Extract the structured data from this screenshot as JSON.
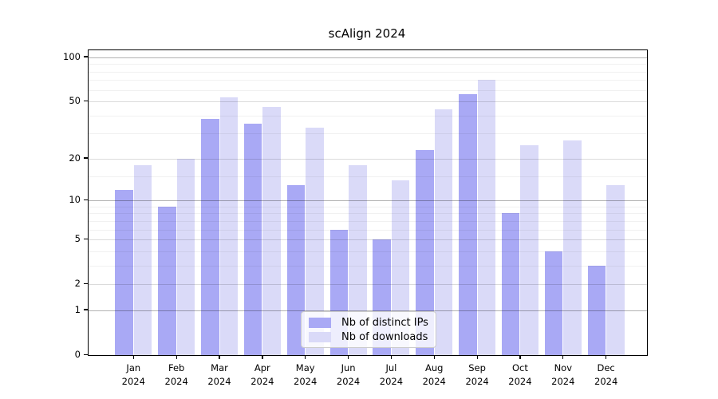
{
  "chart_data": {
    "type": "bar",
    "title": "scAlign 2024",
    "year_label": "2024",
    "categories": [
      "Jan",
      "Feb",
      "Mar",
      "Apr",
      "May",
      "Jun",
      "Jul",
      "Aug",
      "Sep",
      "Oct",
      "Nov",
      "Dec"
    ],
    "series": [
      {
        "name": "Nb of distinct IPs",
        "color": "#a9a9f5",
        "values": [
          12,
          9,
          38,
          35,
          13,
          6,
          5,
          23,
          56,
          8,
          4,
          3
        ]
      },
      {
        "name": "Nb of downloads",
        "color": "#dadaf8",
        "values": [
          18,
          20,
          53,
          46,
          33,
          18,
          14,
          44,
          70,
          25,
          27,
          13
        ]
      }
    ],
    "y_axis": {
      "scale": "log10(1+x)",
      "ticks": [
        0,
        1,
        2,
        5,
        10,
        20,
        50,
        100
      ],
      "decade_ticks": [
        1,
        10,
        100
      ],
      "minor_ticks": [
        3,
        4,
        6,
        7,
        8,
        9,
        15,
        30,
        40,
        60,
        70,
        80,
        90
      ]
    },
    "xlabel": "",
    "ylabel": "",
    "grid": true,
    "legend_position": "lower-center"
  },
  "colors": {
    "background": "#ffffff",
    "axis": "#000000",
    "grid_decade": "rgba(0,0,0,0.30)",
    "grid_major": "rgba(0,0,0,0.14)",
    "grid_minor": "rgba(0,0,0,0.055)"
  }
}
